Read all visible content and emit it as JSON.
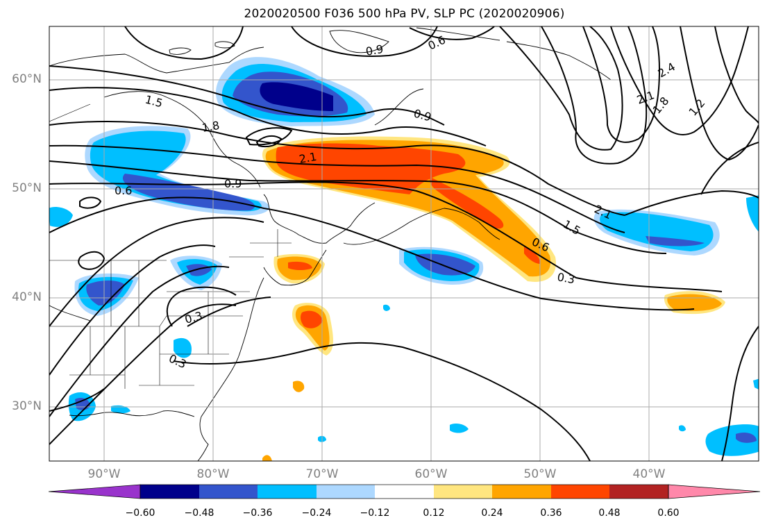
{
  "title": "2020020500 F036 500 hPa PV, SLP PC (2020020906)",
  "lat_labels": [
    "60°N",
    "50°N",
    "40°N",
    "30°N"
  ],
  "lon_labels": [
    "90°W",
    "80°W",
    "70°W",
    "60°W",
    "50°W",
    "40°W"
  ],
  "colorbar": {
    "ticks": [
      "−0.60",
      "−0.48",
      "−0.36",
      "−0.24",
      "−0.12",
      "0.12",
      "0.24",
      "0.36",
      "0.48",
      "0.60"
    ],
    "colors": [
      "#9933cc",
      "#00008b",
      "#3355cc",
      "#00bfff",
      "#add8ff",
      "#ffffff",
      "#ffe680",
      "#ffa500",
      "#ff4500",
      "#b22222",
      "#ff88aa"
    ]
  },
  "contour_labels": [
    "0.9",
    "0.6",
    "1.5",
    "1.8",
    "0.9",
    "2.4",
    "2.1",
    "1.8",
    "1.2",
    "2.1",
    "0.9",
    "0.6",
    "2.1",
    "1.5",
    "0.6",
    "0.3",
    "0.3",
    "0.3"
  ],
  "map_extent": {
    "lon": [
      -95,
      -30
    ],
    "lat": [
      25,
      65
    ]
  }
}
